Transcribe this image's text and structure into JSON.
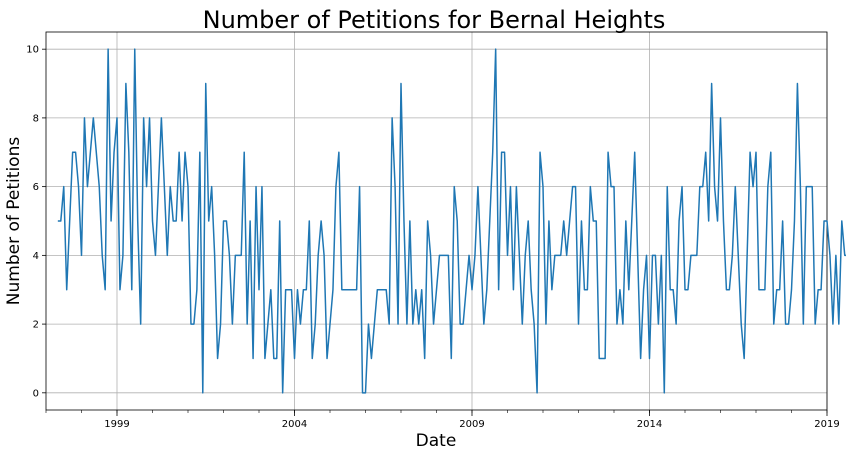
{
  "chart_data": {
    "type": "line",
    "title": "Number of Petitions for Bernal Heights",
    "xlabel": "Date",
    "ylabel": "Number of Petitions",
    "xlim": [
      1997.0,
      2019.0
    ],
    "ylim": [
      -0.5,
      10.5
    ],
    "x_ticks": [
      1999,
      2004,
      2009,
      2014,
      2019
    ],
    "y_ticks": [
      0,
      2,
      4,
      6,
      8,
      10
    ],
    "grid": true,
    "series": [
      {
        "color": "#1f77b4",
        "start_year": 1997,
        "values": [
          5,
          5,
          6,
          3,
          5,
          7,
          7,
          6,
          4,
          8,
          6,
          7,
          8,
          7,
          6,
          4,
          3,
          10,
          5,
          7,
          8,
          3,
          4,
          9,
          7,
          3,
          10,
          5,
          2,
          8,
          6,
          8,
          5,
          4,
          6,
          8,
          6,
          4,
          6,
          5,
          5,
          7,
          5,
          7,
          6,
          2,
          2,
          3,
          7,
          0,
          9,
          5,
          6,
          4,
          1,
          2,
          5,
          5,
          4,
          2,
          4,
          4,
          4,
          7,
          2,
          5,
          1,
          6,
          3,
          6,
          1,
          2,
          3,
          1,
          1,
          5,
          0,
          3,
          3,
          3,
          1,
          3,
          2,
          3,
          3,
          5,
          1,
          2,
          4,
          5,
          4,
          1,
          2,
          3,
          6,
          7,
          3,
          3,
          3,
          3,
          3,
          3,
          6,
          0,
          0,
          2,
          1,
          2,
          3,
          3,
          3,
          3,
          2,
          8,
          6,
          2,
          9,
          5,
          2,
          5,
          2,
          3,
          2,
          3,
          1,
          5,
          4,
          2,
          3,
          4,
          4,
          4,
          4,
          1,
          6,
          5,
          2,
          2,
          3,
          4,
          3,
          4,
          6,
          4,
          2,
          3,
          5,
          7,
          10,
          3,
          7,
          7,
          4,
          6,
          3,
          6,
          4,
          2,
          4,
          5,
          3,
          2,
          0,
          7,
          6,
          2,
          5,
          3,
          4,
          4,
          4,
          5,
          4,
          5,
          6,
          6,
          2,
          5,
          3,
          3,
          6,
          5,
          5,
          1,
          1,
          1,
          7,
          6,
          6,
          2,
          3,
          2,
          5,
          3,
          5,
          7,
          4,
          1,
          3,
          4,
          1,
          4,
          4,
          2,
          4,
          0,
          6,
          3,
          3,
          2,
          5,
          6,
          3,
          3,
          4,
          4,
          4,
          6,
          6,
          7,
          5,
          9,
          6,
          5,
          8,
          5,
          3,
          3,
          4,
          6,
          4,
          2,
          1,
          4,
          7,
          6,
          7,
          3,
          3,
          3,
          6,
          7,
          2,
          3,
          3,
          5,
          2,
          2,
          3,
          5,
          9,
          6,
          2,
          6,
          6,
          6,
          2,
          3,
          3,
          5,
          5,
          4,
          2,
          4,
          2,
          5,
          4,
          4,
          4,
          1,
          5
        ]
      }
    ]
  }
}
